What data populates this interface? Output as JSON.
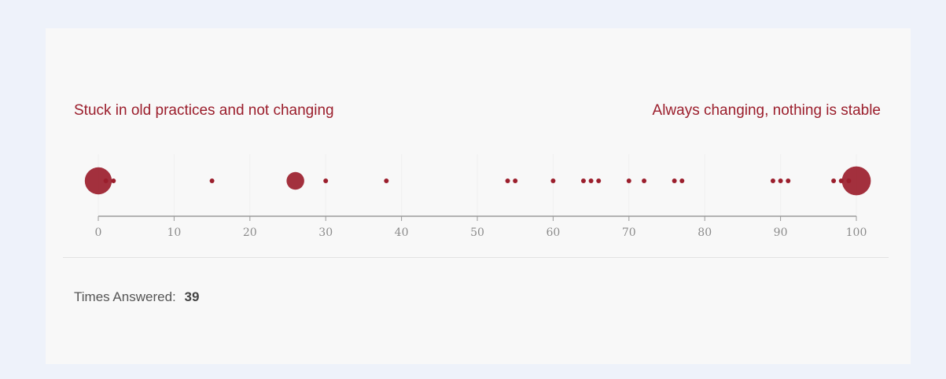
{
  "scale": {
    "left_label": "Stuck in old practices and not changing",
    "right_label": "Always changing, nothing is stable"
  },
  "summary": {
    "times_answered_label": "Times Answered:",
    "times_answered_value": "39"
  },
  "chart_data": {
    "type": "scatter",
    "title": "",
    "xlabel": "",
    "ylabel": "",
    "xlim": [
      0,
      100
    ],
    "x_ticks": [
      0,
      10,
      20,
      30,
      40,
      50,
      60,
      70,
      80,
      90,
      100
    ],
    "grid": false,
    "color": "#9b1e2c",
    "points": [
      {
        "x": 0,
        "count": 7
      },
      {
        "x": 1,
        "count": 1
      },
      {
        "x": 2,
        "count": 1
      },
      {
        "x": 15,
        "count": 1
      },
      {
        "x": 26,
        "count": 3
      },
      {
        "x": 30,
        "count": 1
      },
      {
        "x": 38,
        "count": 1
      },
      {
        "x": 54,
        "count": 1
      },
      {
        "x": 55,
        "count": 1
      },
      {
        "x": 60,
        "count": 1
      },
      {
        "x": 64,
        "count": 1
      },
      {
        "x": 65,
        "count": 1
      },
      {
        "x": 66,
        "count": 1
      },
      {
        "x": 70,
        "count": 1
      },
      {
        "x": 72,
        "count": 1
      },
      {
        "x": 76,
        "count": 1
      },
      {
        "x": 77,
        "count": 1
      },
      {
        "x": 89,
        "count": 1
      },
      {
        "x": 90,
        "count": 1
      },
      {
        "x": 91,
        "count": 1
      },
      {
        "x": 97,
        "count": 1
      },
      {
        "x": 98,
        "count": 1
      },
      {
        "x": 99,
        "count": 1
      },
      {
        "x": 100,
        "count": 8
      }
    ]
  }
}
